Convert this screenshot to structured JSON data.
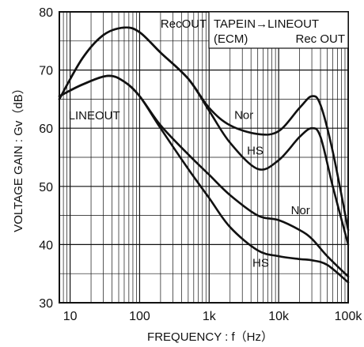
{
  "chart_data": {
    "type": "line",
    "xlabel": "FREQUENCY : f（Hz）",
    "ylabel": "VOLTAGE GAIN : Gv（dB）",
    "x_scale": "log",
    "xlim": [
      7,
      100000
    ],
    "ylim": [
      30,
      80
    ],
    "grid": true,
    "x_ticks": [
      {
        "value": 10,
        "label": "10"
      },
      {
        "value": 100,
        "label": "100"
      },
      {
        "value": 1000,
        "label": "1k"
      },
      {
        "value": 10000,
        "label": "10k"
      },
      {
        "value": 100000,
        "label": "100k"
      }
    ],
    "y_ticks": [
      {
        "value": 30,
        "label": "30"
      },
      {
        "value": 40,
        "label": "40"
      },
      {
        "value": 50,
        "label": "50"
      },
      {
        "value": 60,
        "label": "60"
      },
      {
        "value": 70,
        "label": "70"
      },
      {
        "value": 80,
        "label": "80"
      }
    ],
    "legend": {
      "line1": "TAPEIN→LINEOUT",
      "line2_left": "(ECM)",
      "line2_right": "Rec  OUT",
      "position": "top-right"
    },
    "annotations": [
      {
        "text": "RecOUT",
        "x": 200,
        "y": 77.3
      },
      {
        "text": "LINEOUT",
        "x": 9.5,
        "y": 61.5
      },
      {
        "text": "Nor",
        "x": 2300,
        "y": 61.6
      },
      {
        "text": "HS",
        "x": 3500,
        "y": 55.5
      },
      {
        "text": "Nor",
        "x": 15000,
        "y": 45.2
      },
      {
        "text": "HS",
        "x": 4200,
        "y": 36.2
      }
    ],
    "series": [
      {
        "x": [
          7,
          15,
          30,
          60,
          100,
          200,
          500,
          1000,
          2000,
          5000,
          10000,
          20000,
          30000,
          40000,
          60000,
          100000
        ],
        "y": [
          65.0,
          72.0,
          76.0,
          77.3,
          76.5,
          73.0,
          68.5,
          63.5,
          60.5,
          59.0,
          59.5,
          63.5,
          65.5,
          64.0,
          56.0,
          42.5
        ]
      },
      {
        "x": [
          7,
          15,
          30,
          60,
          100,
          200,
          500,
          1000,
          2000,
          5000,
          10000,
          20000,
          30000,
          40000,
          60000,
          100000
        ],
        "y": [
          65.0,
          72.0,
          76.0,
          77.3,
          76.5,
          73.0,
          68.5,
          63.0,
          57.5,
          53.0,
          54.5,
          58.5,
          60.0,
          58.5,
          50.0,
          40.0
        ]
      },
      {
        "x": [
          7,
          15,
          35,
          60,
          100,
          200,
          500,
          1000,
          2000,
          5000,
          10000,
          20000,
          30000,
          50000,
          100000
        ],
        "y": [
          65.5,
          67.5,
          69.0,
          68.0,
          65.5,
          60.5,
          55.5,
          52.0,
          48.5,
          45.0,
          44.2,
          42.5,
          41.0,
          38.0,
          34.5
        ]
      },
      {
        "x": [
          7,
          15,
          35,
          60,
          100,
          200,
          500,
          1000,
          2000,
          5000,
          10000,
          20000,
          30000,
          50000,
          100000
        ],
        "y": [
          65.5,
          67.5,
          69.0,
          68.0,
          65.5,
          60.0,
          53.0,
          48.0,
          43.0,
          39.0,
          38.0,
          37.5,
          37.3,
          36.5,
          33.5
        ]
      }
    ]
  }
}
